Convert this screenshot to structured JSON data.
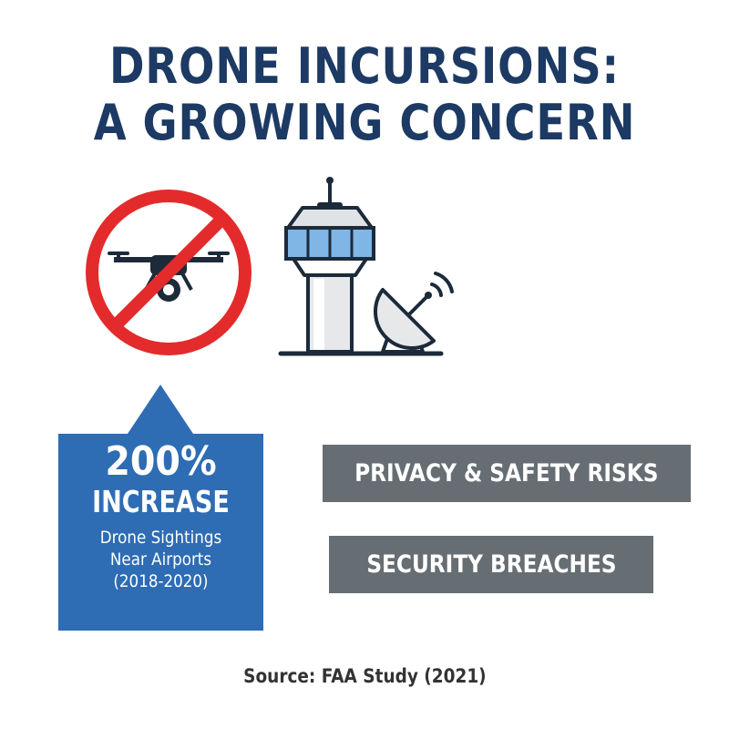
{
  "title": {
    "line1": "DRONE INCURSIONS:",
    "line2": "A GROWING CONCERN"
  },
  "icons": {
    "no_drone": "no-drone-icon",
    "tower": "control-tower-icon",
    "radar": "satellite-dish-icon"
  },
  "stat": {
    "value": "200%",
    "unit": "INCREASE",
    "desc_line1": "Drone Sightings",
    "desc_line2": "Near Airports",
    "desc_line3": "(2018-2020)"
  },
  "risks": [
    {
      "label": "PRIVACY & SAFETY RISKS"
    },
    {
      "label": "SECURITY BREACHES"
    }
  ],
  "source": "Source: FAA Study (2021)",
  "colors": {
    "title": "#1c3a63",
    "stat_box": "#2e6cb4",
    "risk_box": "#666e73",
    "prohibit_red": "#e32b2b",
    "tower_window": "#7fb6e6"
  }
}
